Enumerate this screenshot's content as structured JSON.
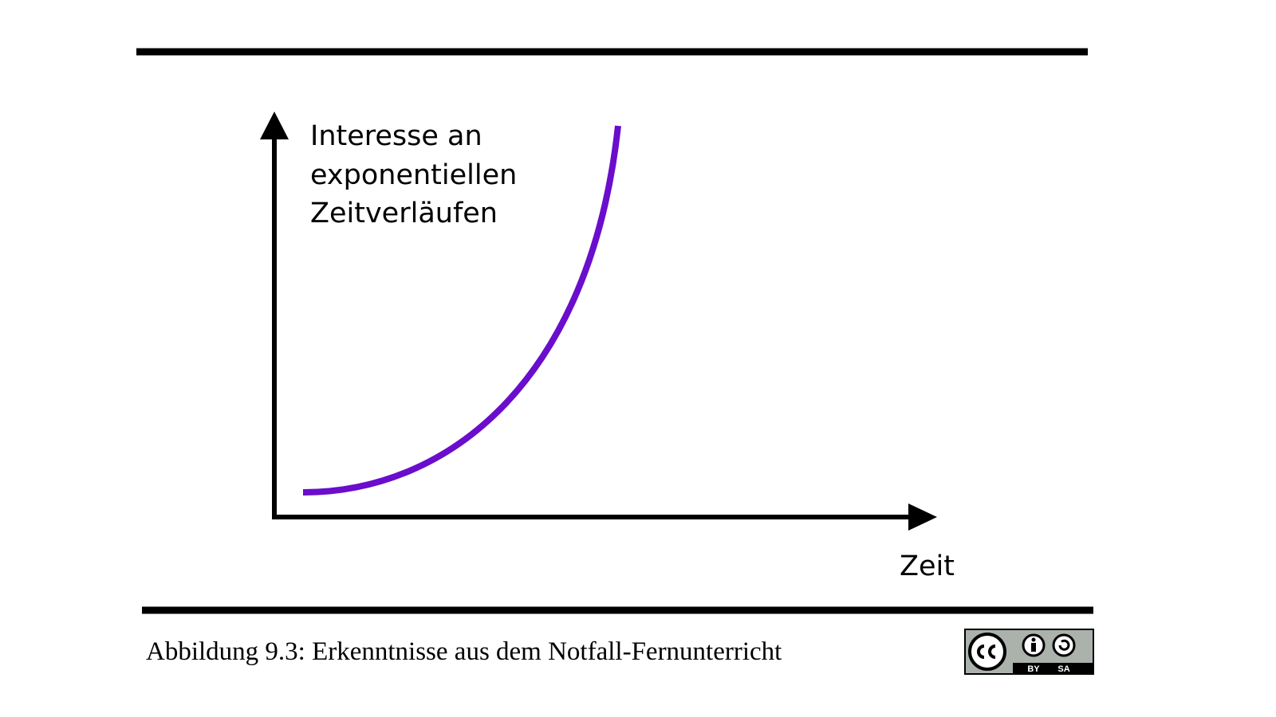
{
  "figure": {
    "y_label": [
      "Interesse an",
      "exponentiellen",
      "Zeitverläufen"
    ],
    "x_label": "Zeit"
  },
  "caption": "Abbildung 9.3: Erkenntnisse aus dem Notfall-Fernunterricht",
  "license": {
    "by": "BY",
    "sa": "SA"
  }
}
